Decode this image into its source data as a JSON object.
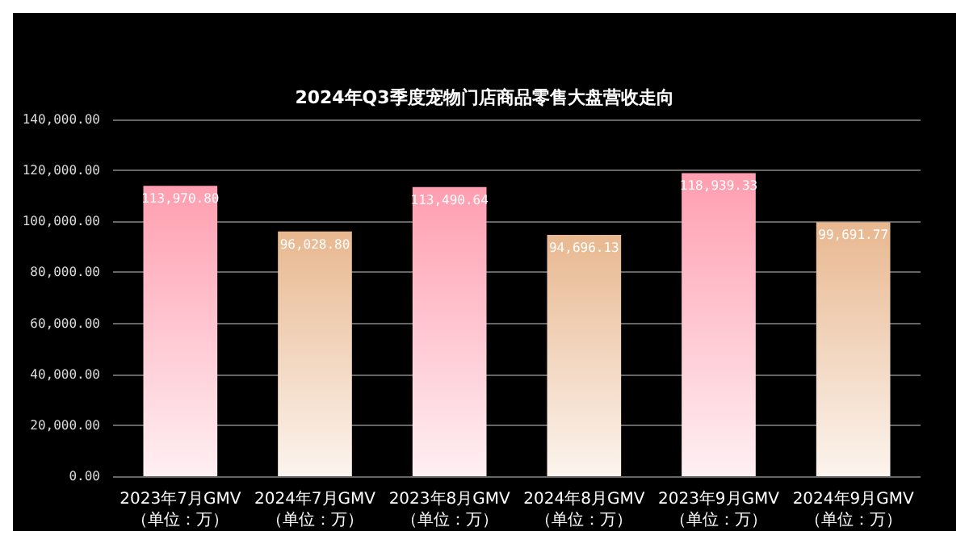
{
  "chart_data": {
    "type": "bar",
    "title": "2024年Q3季度宠物门店商品零售大盘营收走向",
    "categories": [
      "2023年7月GMV\n（单位：万）",
      "2024年7月GMV\n（单位：万）",
      "2023年8月GMV\n（单位：万）",
      "2024年8月GMV\n（单位：万）",
      "2023年9月GMV\n（单位：万）",
      "2024年9月GMV\n（单位：万）"
    ],
    "values": [
      113970.8,
      96028.8,
      113490.64,
      94696.13,
      118939.33,
      99691.77
    ],
    "value_labels": [
      "113,970.80",
      "96,028.80",
      "113,490.64",
      "94,696.13",
      "118,939.33",
      "99,691.77"
    ],
    "colors": [
      "#ff9eb0",
      "#e8b890",
      "#ff9eb0",
      "#e8b890",
      "#ff9eb0",
      "#e8b890"
    ],
    "ylim": [
      0,
      140000
    ],
    "yticks": [
      {
        "value": 0,
        "label": "0.00"
      },
      {
        "value": 20000,
        "label": "20,000.00"
      },
      {
        "value": 40000,
        "label": "40,000.00"
      },
      {
        "value": 60000,
        "label": "60,000.00"
      },
      {
        "value": 80000,
        "label": "80,000.00"
      },
      {
        "value": 100000,
        "label": "100,000.00"
      },
      {
        "value": 120000,
        "label": "120,000.00"
      },
      {
        "value": 140000,
        "label": "140,000.00"
      }
    ],
    "grid": "y"
  }
}
